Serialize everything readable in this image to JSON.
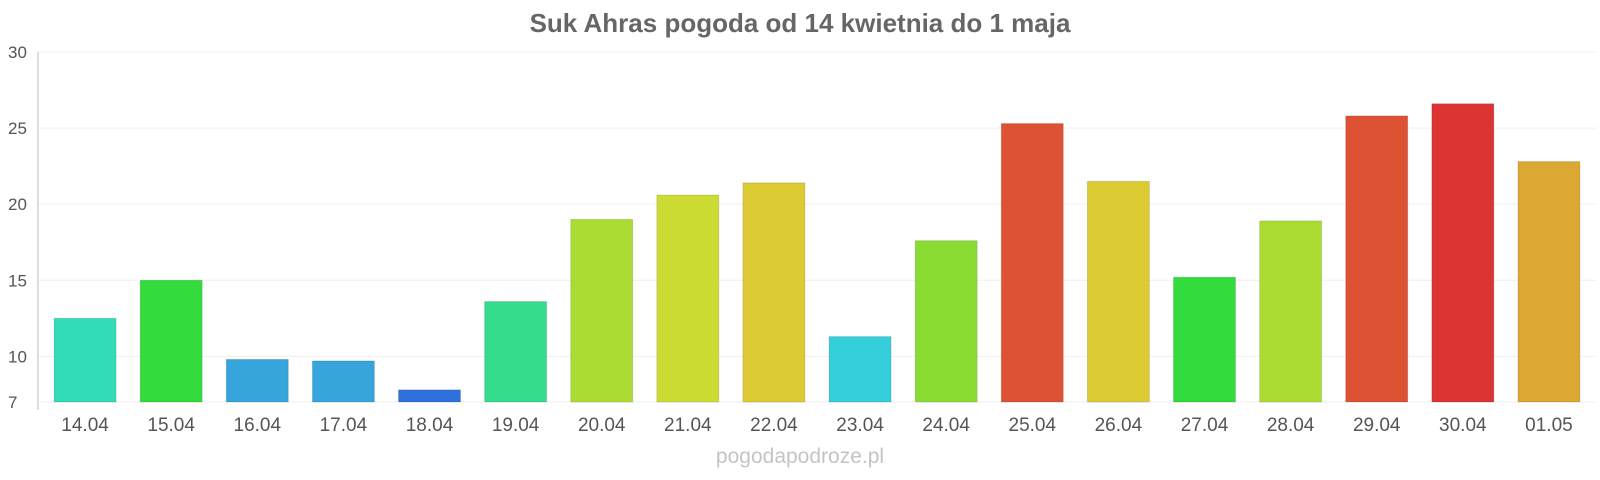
{
  "chart_data": {
    "type": "bar",
    "title": "Suk Ahras pogoda od 14 kwietnia do 1 maja",
    "xlabel": "",
    "ylabel": "",
    "ylim": [
      7,
      30
    ],
    "yticks": [
      7,
      10,
      15,
      20,
      25,
      30
    ],
    "grid": true,
    "legend": "none",
    "categories": [
      "14.04",
      "15.04",
      "16.04",
      "17.04",
      "18.04",
      "19.04",
      "20.04",
      "21.04",
      "22.04",
      "23.04",
      "24.04",
      "25.04",
      "26.04",
      "27.04",
      "28.04",
      "29.04",
      "30.04",
      "01.05"
    ],
    "values": [
      12.5,
      15.0,
      9.8,
      9.7,
      7.8,
      13.6,
      19.0,
      20.6,
      21.4,
      11.3,
      17.6,
      25.3,
      21.5,
      15.2,
      18.9,
      25.8,
      26.6,
      22.8
    ],
    "colors": [
      "#33dcb8",
      "#33dc3c",
      "#35a5dc",
      "#35a5dc",
      "#3070dc",
      "#35dc8b",
      "#aadc33",
      "#cddc33",
      "#dccb33",
      "#35cfdc",
      "#8adc33",
      "#dc5233",
      "#dccb33",
      "#33dc3c",
      "#aadc33",
      "#dc5233",
      "#dc3333",
      "#dca833"
    ]
  },
  "watermark": "pogodapodroze.pl"
}
